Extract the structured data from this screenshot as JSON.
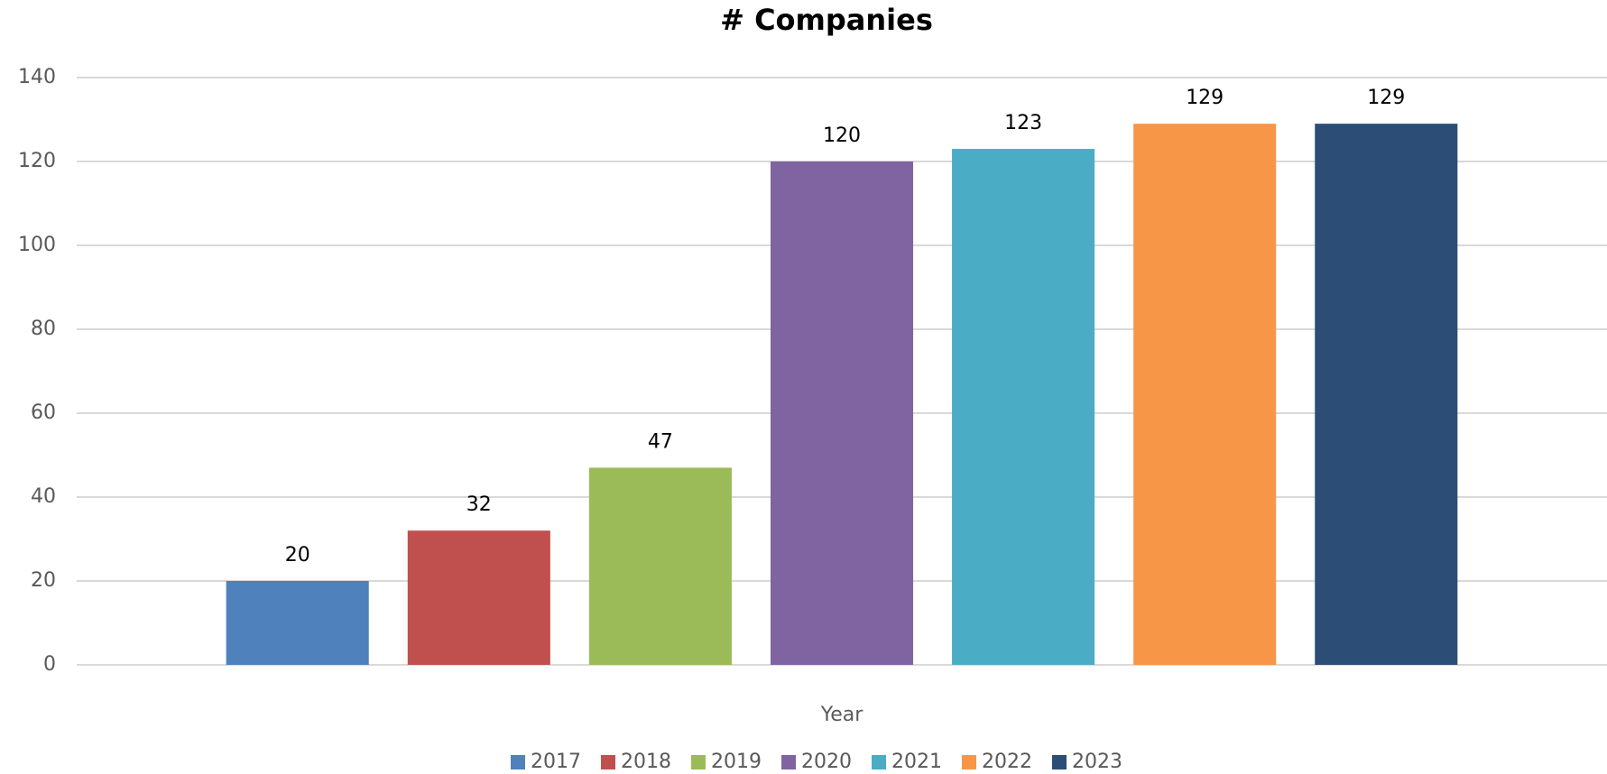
{
  "chart_data": {
    "type": "bar",
    "title": "# Companies",
    "x_label": "Year",
    "categories": [
      null
    ],
    "series": [
      {
        "name": "2017",
        "color": "#4f81bd",
        "values": [
          20
        ]
      },
      {
        "name": "2018",
        "color": "#c0504d",
        "values": [
          32
        ]
      },
      {
        "name": "2019",
        "color": "#9bbb59",
        "values": [
          47
        ]
      },
      {
        "name": "2020",
        "color": "#8064a2",
        "values": [
          120
        ]
      },
      {
        "name": "2021",
        "color": "#4bacc6",
        "values": [
          123
        ]
      },
      {
        "name": "2022",
        "color": "#f79646",
        "values": [
          129
        ]
      },
      {
        "name": "2023",
        "color": "#2c4d75",
        "values": [
          129
        ]
      }
    ],
    "ylim": [
      0,
      140
    ],
    "yticks": [
      0,
      20,
      40,
      60,
      80,
      100,
      120,
      140
    ],
    "grid": true,
    "legend": "bottom"
  }
}
